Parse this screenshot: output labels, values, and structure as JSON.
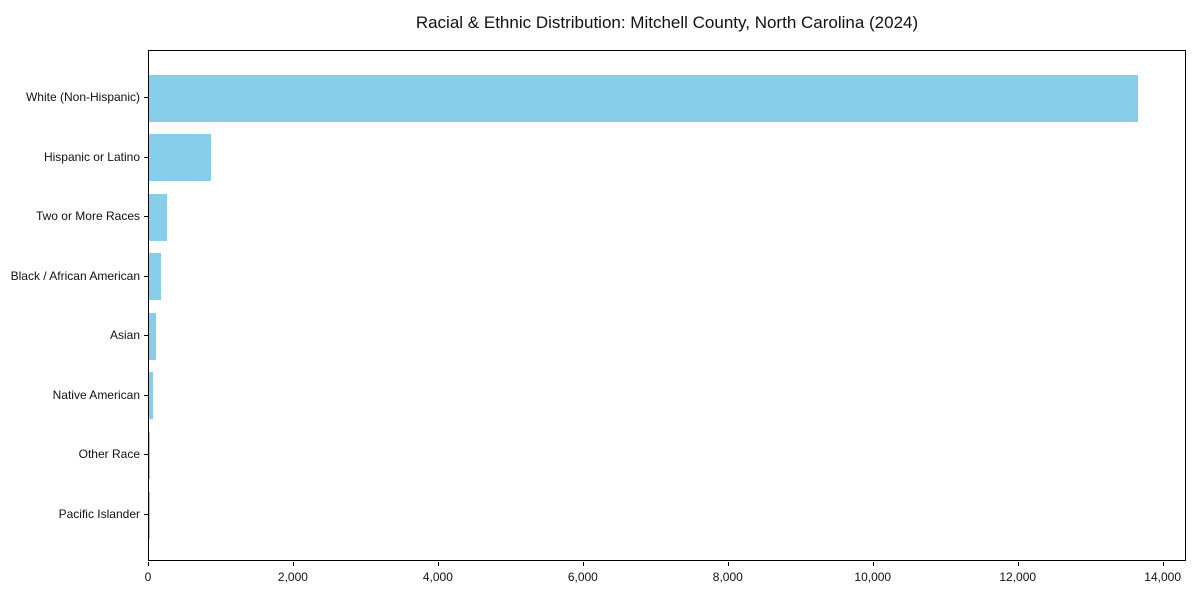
{
  "chart_data": {
    "type": "bar",
    "orientation": "horizontal",
    "title": "Racial & Ethnic Distribution: Mitchell County, North Carolina (2024)",
    "categories": [
      "White (Non-Hispanic)",
      "Hispanic or Latino",
      "Two or More Races",
      "Black / African American",
      "Asian",
      "Native American",
      "Other Race",
      "Pacific Islander"
    ],
    "values": [
      13640,
      850,
      250,
      165,
      90,
      50,
      15,
      3
    ],
    "xlabel": "",
    "ylabel": "",
    "xlim": [
      0,
      14322
    ],
    "x_ticks": [
      0,
      2000,
      4000,
      6000,
      8000,
      10000,
      12000,
      14000
    ],
    "x_tick_labels": [
      "0",
      "2,000",
      "4,000",
      "6,000",
      "8,000",
      "10,000",
      "12,000",
      "14,000"
    ],
    "grid": false,
    "legend": "none",
    "bar_color": "#87CEEB",
    "axis_color": "#000000",
    "text_color": "#111111",
    "background_color": "#ffffff"
  }
}
